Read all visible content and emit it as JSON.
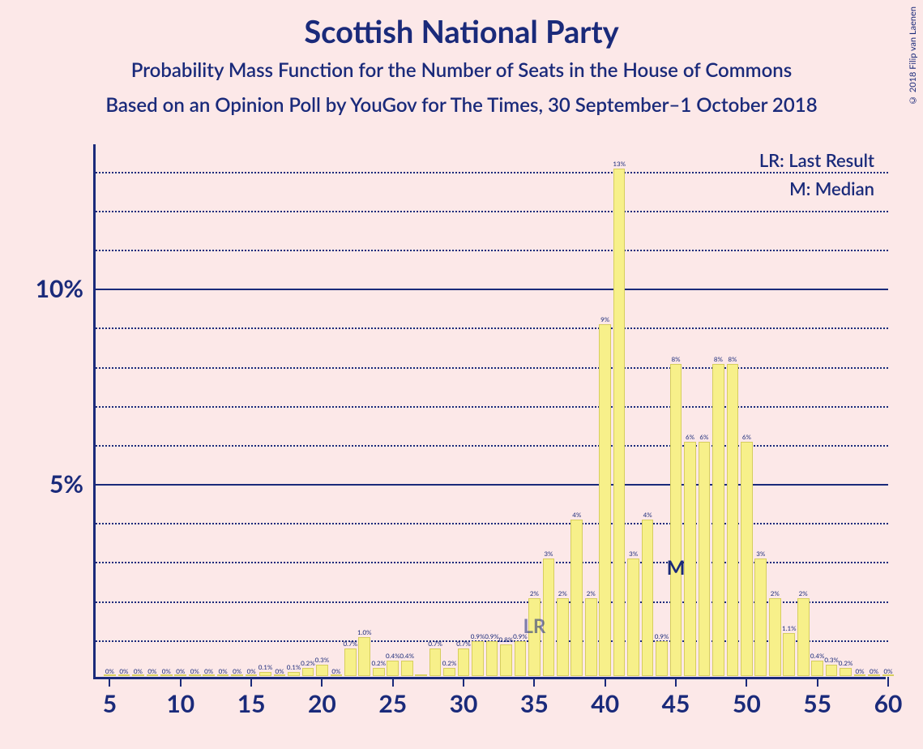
{
  "title": "Scottish National Party",
  "subtitle": "Probability Mass Function for the Number of Seats in the House of Commons",
  "subtitle2": "Based on an Opinion Poll by YouGov for The Times, 30 September–1 October 2018",
  "copyright": "© 2018 Filip van Laenen",
  "legend": {
    "lr": "LR: Last Result",
    "m": "M: Median"
  },
  "chart": {
    "type": "bar",
    "background_color": "#fce8e8",
    "bar_fill": "#f7f08a",
    "bar_border": "#d6ce5e",
    "axis_color": "#1a2a7a",
    "grid_color": "#1a2a7a",
    "x_range": [
      4,
      60
    ],
    "y_range": [
      0,
      13.7
    ],
    "y_ticks_major": [
      5,
      10
    ],
    "y_ticks_minor": [
      1,
      2,
      3,
      4,
      6,
      7,
      8,
      9,
      11,
      12,
      13
    ],
    "x_ticks": [
      5,
      10,
      15,
      20,
      25,
      30,
      35,
      40,
      45,
      50,
      55,
      60
    ],
    "bar_width_rel": 0.84,
    "lr_seat": 35,
    "median_seat": 45,
    "median_marker_y": 2.5,
    "label_fontsize": 8,
    "axis_label_fontsize": 30,
    "title_fontsize": 38,
    "subtitle_fontsize": 24,
    "data": [
      {
        "x": 5,
        "y": 0,
        "lbl": "0%"
      },
      {
        "x": 6,
        "y": 0,
        "lbl": "0%"
      },
      {
        "x": 7,
        "y": 0,
        "lbl": "0%"
      },
      {
        "x": 8,
        "y": 0,
        "lbl": "0%"
      },
      {
        "x": 9,
        "y": 0,
        "lbl": "0%"
      },
      {
        "x": 10,
        "y": 0,
        "lbl": "0%"
      },
      {
        "x": 11,
        "y": 0,
        "lbl": "0%"
      },
      {
        "x": 12,
        "y": 0,
        "lbl": "0%"
      },
      {
        "x": 13,
        "y": 0,
        "lbl": "0%"
      },
      {
        "x": 14,
        "y": 0,
        "lbl": "0%"
      },
      {
        "x": 15,
        "y": 0,
        "lbl": "0%"
      },
      {
        "x": 16,
        "y": 0.1,
        "lbl": "0.1%"
      },
      {
        "x": 17,
        "y": 0,
        "lbl": "0%"
      },
      {
        "x": 18,
        "y": 0.1,
        "lbl": "0.1%"
      },
      {
        "x": 19,
        "y": 0.2,
        "lbl": "0.2%"
      },
      {
        "x": 20,
        "y": 0.3,
        "lbl": "0.3%"
      },
      {
        "x": 21,
        "y": 0,
        "lbl": "0%"
      },
      {
        "x": 22,
        "y": 0.7,
        "lbl": "0.7%"
      },
      {
        "x": 23,
        "y": 1.0,
        "lbl": "1.0%"
      },
      {
        "x": 24,
        "y": 0.2,
        "lbl": "0.2%"
      },
      {
        "x": 25,
        "y": 0.4,
        "lbl": "0.4%"
      },
      {
        "x": 26,
        "y": 0.4,
        "lbl": "0.4%"
      },
      {
        "x": 27,
        "y": 0,
        "lbl": ""
      },
      {
        "x": 28,
        "y": 0.7,
        "lbl": "0.7%"
      },
      {
        "x": 29,
        "y": 0.2,
        "lbl": "0.2%"
      },
      {
        "x": 30,
        "y": 0.7,
        "lbl": "0.7%"
      },
      {
        "x": 31,
        "y": 0.9,
        "lbl": "0.9%"
      },
      {
        "x": 32,
        "y": 0.9,
        "lbl": "0.9%"
      },
      {
        "x": 33,
        "y": 0.8,
        "lbl": "0.8%"
      },
      {
        "x": 34,
        "y": 0.9,
        "lbl": "0.9%"
      },
      {
        "x": 35,
        "y": 2,
        "lbl": "2%"
      },
      {
        "x": 36,
        "y": 3,
        "lbl": "3%"
      },
      {
        "x": 37,
        "y": 2,
        "lbl": "2%"
      },
      {
        "x": 38,
        "y": 4,
        "lbl": "4%"
      },
      {
        "x": 39,
        "y": 2,
        "lbl": "2%"
      },
      {
        "x": 40,
        "y": 9,
        "lbl": "9%"
      },
      {
        "x": 41,
        "y": 13,
        "lbl": "13%"
      },
      {
        "x": 42,
        "y": 3,
        "lbl": "3%"
      },
      {
        "x": 43,
        "y": 4,
        "lbl": "4%"
      },
      {
        "x": 44,
        "y": 0.9,
        "lbl": "0.9%"
      },
      {
        "x": 45,
        "y": 8,
        "lbl": "8%"
      },
      {
        "x": 46,
        "y": 6,
        "lbl": "6%"
      },
      {
        "x": 47,
        "y": 6,
        "lbl": "6%"
      },
      {
        "x": 48,
        "y": 8,
        "lbl": "8%"
      },
      {
        "x": 49,
        "y": 8,
        "lbl": "8%"
      },
      {
        "x": 50,
        "y": 6,
        "lbl": "6%"
      },
      {
        "x": 51,
        "y": 3,
        "lbl": "3%"
      },
      {
        "x": 52,
        "y": 2,
        "lbl": "2%"
      },
      {
        "x": 53,
        "y": 1.1,
        "lbl": "1.1%"
      },
      {
        "x": 54,
        "y": 2,
        "lbl": "2%"
      },
      {
        "x": 55,
        "y": 0.4,
        "lbl": "0.4%"
      },
      {
        "x": 56,
        "y": 0.3,
        "lbl": "0.3%"
      },
      {
        "x": 57,
        "y": 0.2,
        "lbl": "0.2%"
      },
      {
        "x": 58,
        "y": 0,
        "lbl": "0%"
      },
      {
        "x": 59,
        "y": 0,
        "lbl": "0%"
      },
      {
        "x": 60,
        "y": 0,
        "lbl": "0%"
      }
    ]
  }
}
